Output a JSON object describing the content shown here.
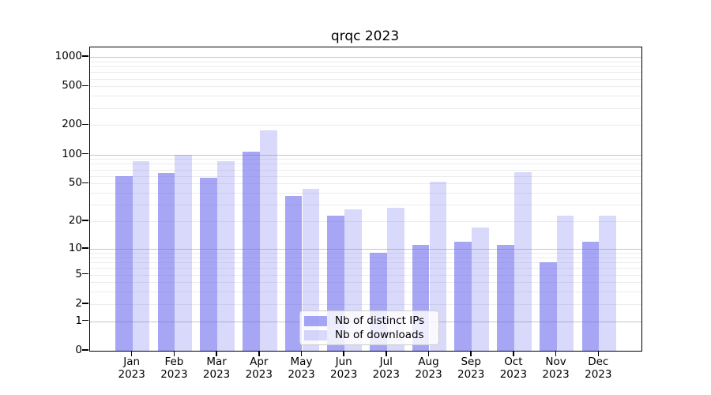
{
  "chart_data": {
    "type": "bar",
    "title": "qrqc 2023",
    "categories": [
      "Jan 2023",
      "Feb 2023",
      "Mar 2023",
      "Apr 2023",
      "May 2023",
      "Jun 2023",
      "Jul 2023",
      "Aug 2023",
      "Sep 2023",
      "Oct 2023",
      "Nov 2023",
      "Dec 2023"
    ],
    "series": [
      {
        "name": "Nb of distinct IPs",
        "color": "rgba(102,102,238,0.58)",
        "values": [
          60,
          64,
          57,
          107,
          37,
          23,
          9,
          11,
          12,
          11,
          7,
          12
        ]
      },
      {
        "name": "Nb of downloads",
        "color": "rgba(102,102,238,0.25)",
        "values": [
          86,
          100,
          85,
          178,
          44,
          27,
          28,
          52,
          17,
          66,
          23,
          23
        ]
      }
    ],
    "yscale": "symlog (log1p)",
    "yticks": [
      0,
      1,
      2,
      5,
      10,
      20,
      50,
      100,
      200,
      500,
      1000
    ],
    "ylim": [
      0,
      1250
    ],
    "grid": "horizontal major + minor",
    "legend_position": "lower center"
  },
  "colors": {
    "bar_dark_effective": "#a8a8f3",
    "bar_light_effective": "#d9d9f9",
    "grid_major": "#c6c6c6",
    "grid_minor": "#ececec",
    "axis": "#000000"
  }
}
